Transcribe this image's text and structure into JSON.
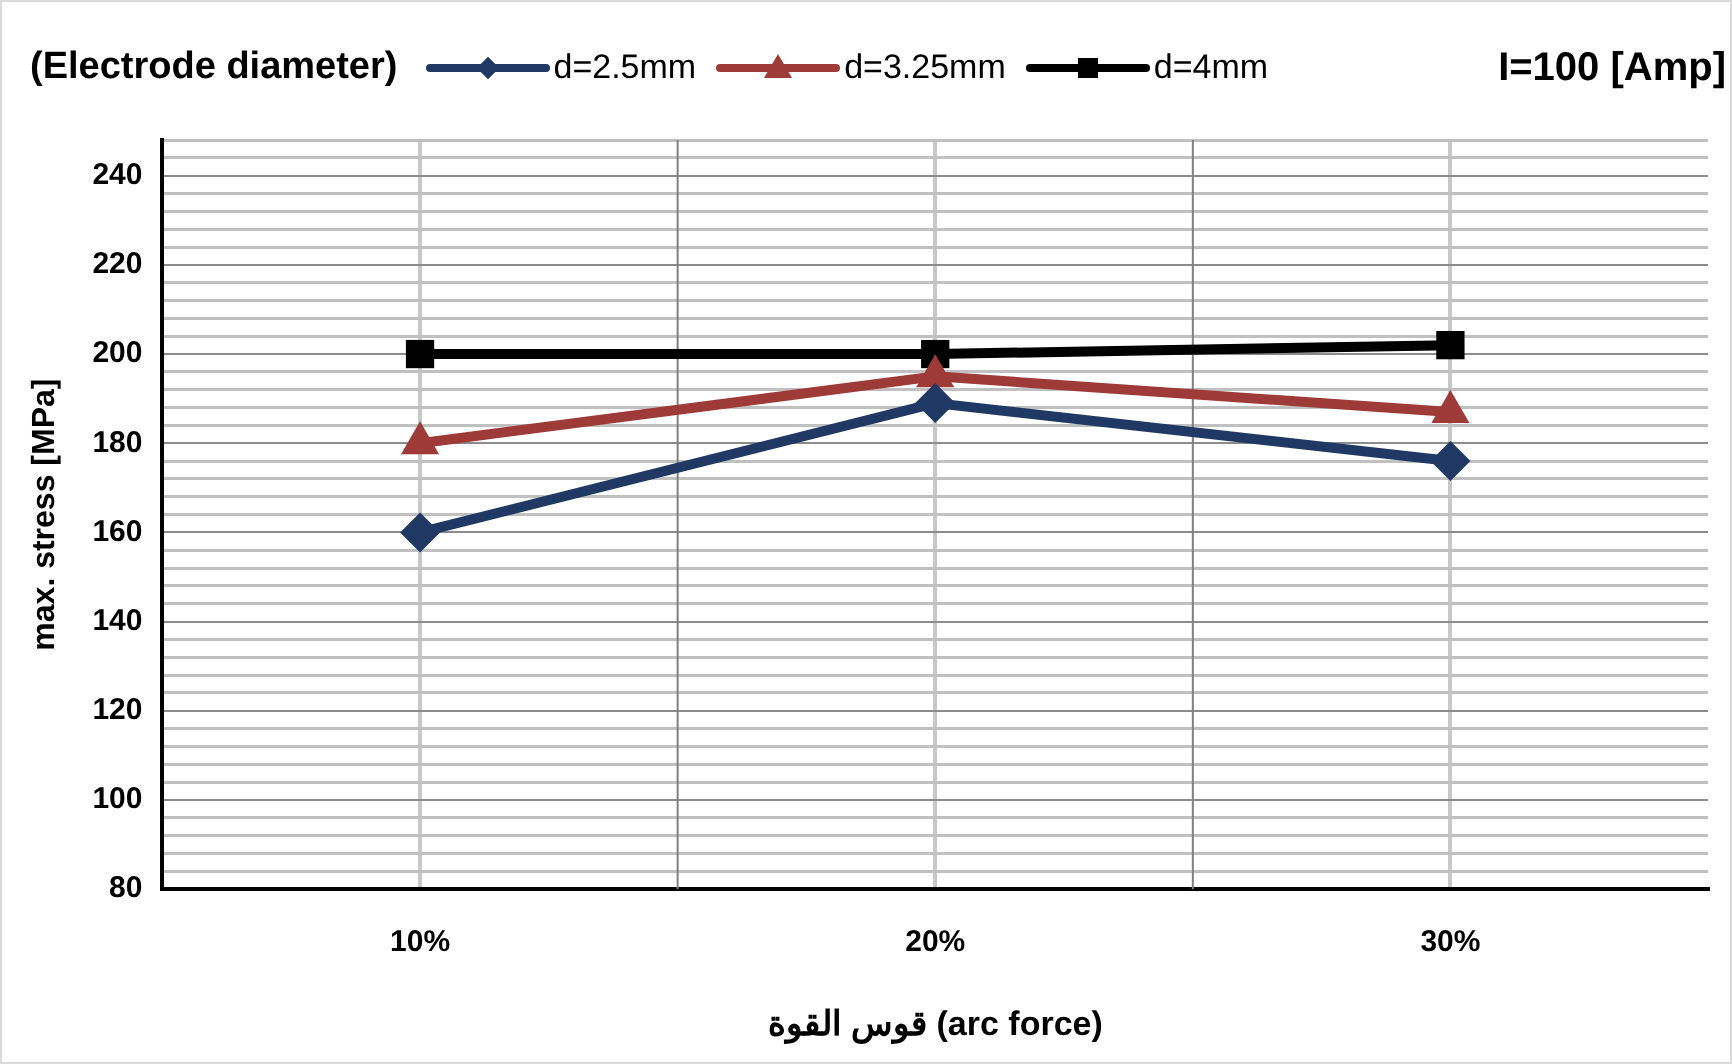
{
  "chart_data": {
    "type": "line",
    "title": "I=100 [Amp]",
    "legend_title": "(Electrode diameter)",
    "xlabel": "قوس القوة (arc force)",
    "ylabel": "max. stress [MPa]",
    "categories": [
      "10%",
      "20%",
      "30%"
    ],
    "series": [
      {
        "name": "d=2.5mm",
        "color": "#1f3864",
        "marker": "diamond",
        "values": [
          160,
          189,
          176
        ]
      },
      {
        "name": "d=3.25mm",
        "color": "#9e3a38",
        "marker": "triangle",
        "values": [
          180,
          195,
          187
        ]
      },
      {
        "name": "d=4mm",
        "color": "#000000",
        "marker": "square",
        "values": [
          200,
          200,
          202
        ]
      }
    ],
    "ylim": [
      80,
      248
    ],
    "yticks": [
      80,
      {
        "value": 84,
        "label": null
      },
      {
        "value": 88,
        "label": null
      },
      {
        "value": 92,
        "label": null
      },
      {
        "value": 96,
        "label": null
      },
      100,
      {
        "value": 104,
        "label": null
      },
      {
        "value": 108,
        "label": null
      },
      {
        "value": 112,
        "label": null
      },
      {
        "value": 116,
        "label": null
      },
      120,
      {
        "value": 124,
        "label": null
      },
      {
        "value": 128,
        "label": null
      },
      {
        "value": 132,
        "label": null
      },
      {
        "value": 136,
        "label": null
      },
      140,
      {
        "value": 144,
        "label": null
      },
      {
        "value": 148,
        "label": null
      },
      {
        "value": 152,
        "label": null
      },
      {
        "value": 156,
        "label": null
      },
      160,
      {
        "value": 164,
        "label": null
      },
      {
        "value": 168,
        "label": null
      },
      {
        "value": 172,
        "label": null
      },
      {
        "value": 176,
        "label": null
      },
      180,
      {
        "value": 184,
        "label": null
      },
      {
        "value": 188,
        "label": null
      },
      {
        "value": 192,
        "label": null
      },
      {
        "value": 196,
        "label": null
      },
      200,
      {
        "value": 204,
        "label": null
      },
      {
        "value": 208,
        "label": null
      },
      {
        "value": 212,
        "label": null
      },
      {
        "value": 216,
        "label": null
      },
      220,
      {
        "value": 224,
        "label": null
      },
      {
        "value": 228,
        "label": null
      },
      {
        "value": 232,
        "label": null
      },
      {
        "value": 236,
        "label": null
      },
      240,
      {
        "value": 244,
        "label": null
      },
      {
        "value": 248,
        "label": null
      }
    ],
    "grid": true,
    "legend": "top",
    "line_style": "solid"
  }
}
